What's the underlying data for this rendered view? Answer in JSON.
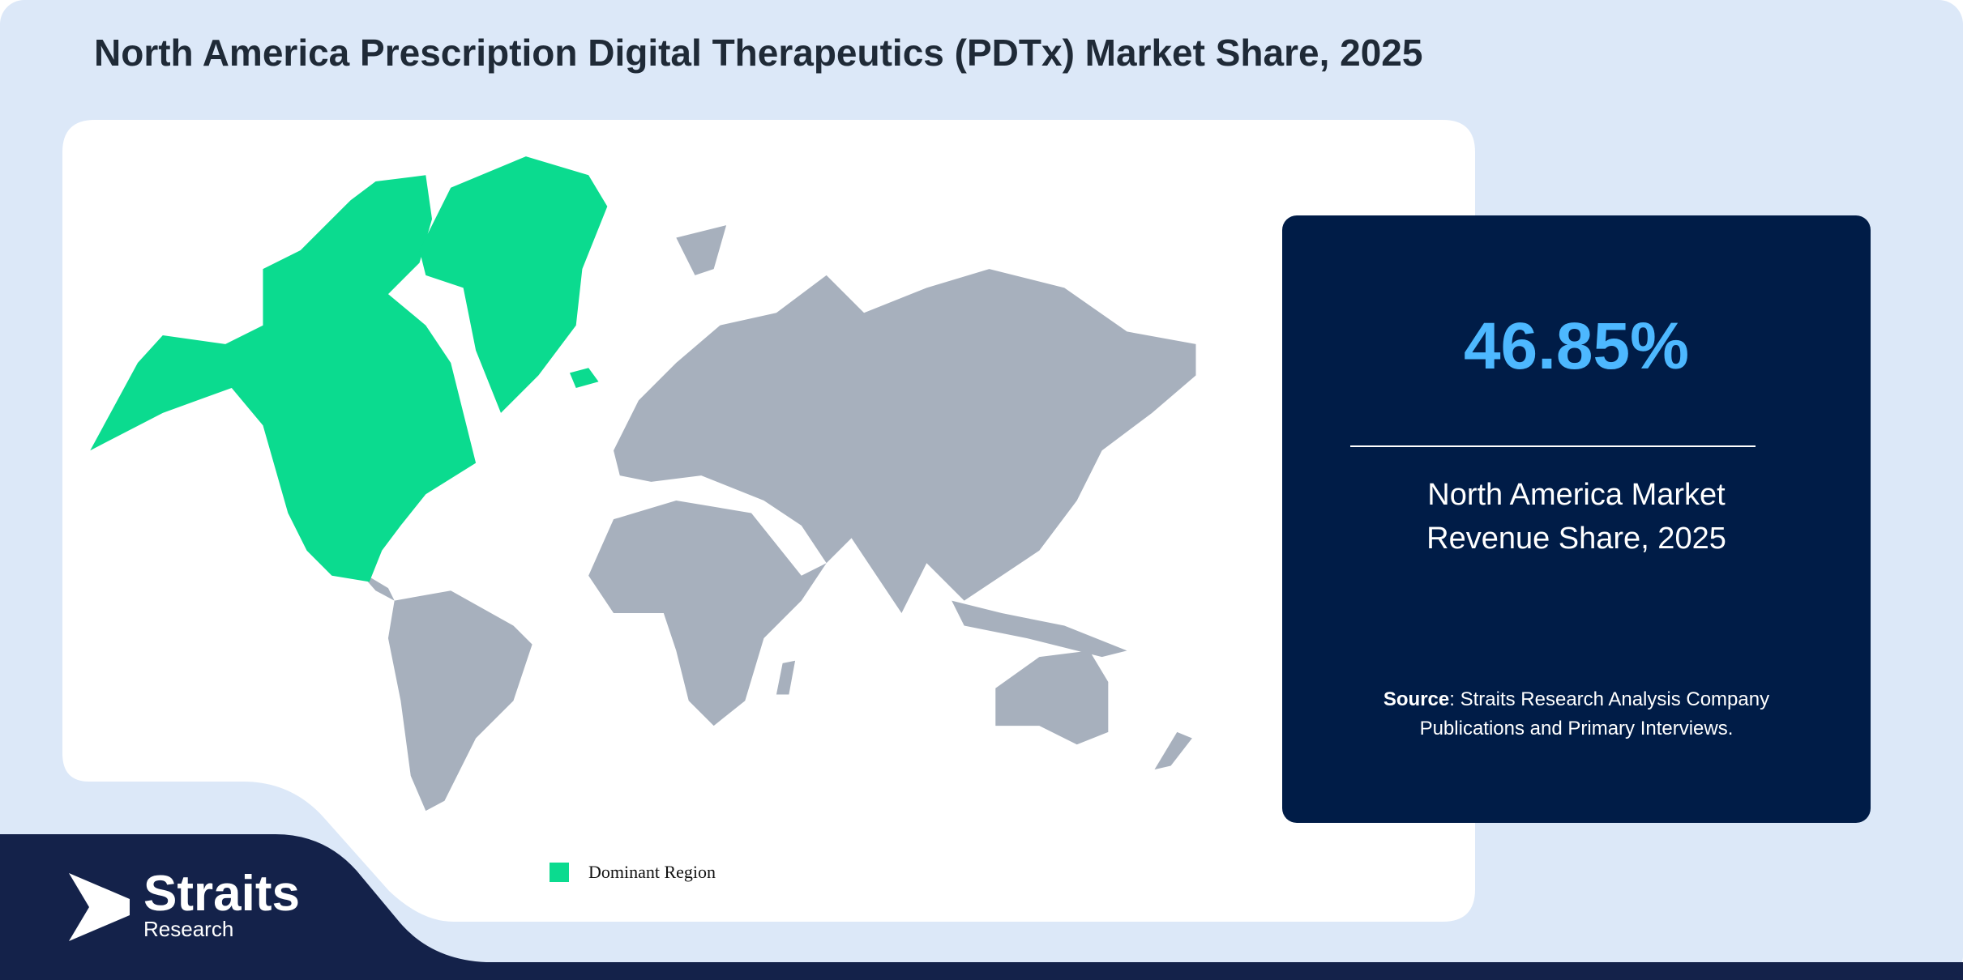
{
  "header": {
    "title": "North America Prescription Digital Therapeutics (PDTx) Market Share, 2025"
  },
  "stat": {
    "value": "46.85%",
    "label": "North America Market Revenue Share, 2025"
  },
  "source": {
    "label": "Source",
    "text": ": Straits Research Analysis Company Publications and Primary Interviews."
  },
  "legend": {
    "label": "Dominant Region"
  },
  "logo": {
    "name": "Straits",
    "sub": "Research"
  }
}
